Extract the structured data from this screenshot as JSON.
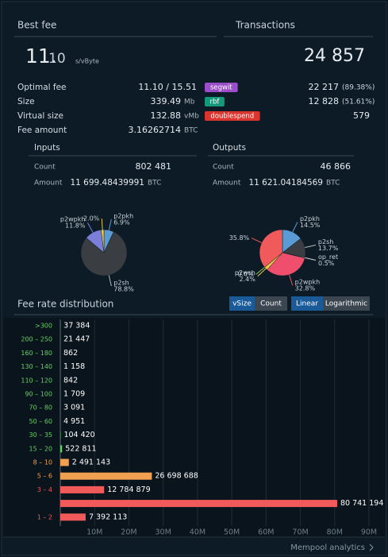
{
  "best_fee": {
    "header": "Best fee",
    "value_main": "11.",
    "value_fraction": "10",
    "unit": "s/vByte"
  },
  "transactions": {
    "header": "Transactions",
    "count": "24 857"
  },
  "stats": [
    {
      "label": "Optimal fee",
      "value": "11.10 / 15.51",
      "unit": null
    },
    {
      "label": "Size",
      "value": "339.49",
      "unit": "Mb"
    },
    {
      "label": "Virtual size",
      "value": "132.88",
      "unit": "vMb"
    },
    {
      "label": "Fee amount",
      "value": "3.16262714",
      "unit": "BTC"
    }
  ],
  "badges": [
    {
      "name": "segwit",
      "color": "#9b4dca",
      "count": "22 217",
      "share": "(89.38%)"
    },
    {
      "name": "rbf",
      "color": "#16987a",
      "count": "12 828",
      "share": "(51.61%)"
    },
    {
      "name": "doublespend",
      "color": "#d9352e",
      "count": "579",
      "share": null
    }
  ],
  "inputs": {
    "header": "Inputs",
    "count_label": "Count",
    "count": "802 481",
    "amount_label": "Amount",
    "amount": "11 699.48439991",
    "amount_unit": "BTC",
    "pie": {
      "type": "pie",
      "names": [
        "p2pkh",
        "p2sh",
        "p2wpkh",
        null
      ],
      "values": [
        6.9,
        78.8,
        11.8,
        2.0
      ],
      "value_labels": [
        "6.9%",
        "78.8%",
        "11.8%",
        "2.0%"
      ],
      "colors": [
        "#5b9bd5",
        "#3a3d42",
        "#7b7fd9",
        "#e8c94a"
      ]
    }
  },
  "outputs": {
    "header": "Outputs",
    "count_label": "Count",
    "count": "46 866",
    "amount_label": "Amount",
    "amount": "11 621.04184569",
    "amount_unit": "BTC",
    "pie": {
      "type": "pie",
      "names": [
        "p2pkh",
        "p2sh",
        "op_ret",
        "p2wpkh",
        "p2wsh",
        null,
        null
      ],
      "values": [
        14.5,
        13.7,
        0.5,
        32.8,
        2.4,
        0.0,
        35.8
      ],
      "value_labels": [
        "14.5%",
        "13.7%",
        "0.5%",
        "32.8%",
        "2.4%",
        "0.0%",
        "35.8%"
      ],
      "colors": [
        "#5b9bd5",
        "#3a3d42",
        "#cfd4d8",
        "#ef4f6c",
        "#e8c94a",
        "#8cc152",
        "#f05a5a"
      ]
    }
  },
  "controls": [
    "vSize",
    "Count",
    "Linear",
    "Logarithmic"
  ],
  "footer": {
    "link": "Mempool analytics"
  },
  "chart_data": {
    "type": "hbar",
    "title": "Fee rate distribution",
    "categories": [
      ">300",
      "200 – 250",
      "160 – 180",
      "130 – 140",
      "110 – 120",
      "90 – 100",
      "70 – 80",
      "50 – 60",
      "30 – 35",
      "15 – 20",
      "8 – 10",
      "5 – 6",
      "3 – 4",
      null,
      "1 – 2"
    ],
    "values": [
      37384,
      21447,
      862,
      1158,
      842,
      1709,
      3091,
      4951,
      104420,
      522811,
      2491143,
      26698688,
      12784879,
      80741194,
      7392113
    ],
    "value_labels": [
      "37 384",
      "21 447",
      "862",
      "1 158",
      "842",
      "1 709",
      "3 091",
      "4 951",
      "104 420",
      "522 811",
      "2 491 143",
      "26 698 688",
      "12 784 879",
      "80 741 194",
      "7 392 113"
    ],
    "colors": [
      "#5fd35f",
      "#5fd35f",
      "#5fd35f",
      "#5fd35f",
      "#5fd35f",
      "#5fd35f",
      "#5fd35f",
      "#5fd35f",
      "#5fd35f",
      "#5fd35f",
      "#f0a050",
      "#f0a050",
      "#f05a5a",
      "#f05a5a",
      "#f05a5a"
    ],
    "xlim": [
      0,
      90000000
    ],
    "xticks": [
      {
        "value": 10000000,
        "label": "10M"
      },
      {
        "value": 20000000,
        "label": "20M"
      },
      {
        "value": 30000000,
        "label": "30M"
      },
      {
        "value": 40000000,
        "label": "40M"
      },
      {
        "value": 50000000,
        "label": "50M"
      },
      {
        "value": 60000000,
        "label": "60M"
      },
      {
        "value": 70000000,
        "label": "70M"
      },
      {
        "value": 80000000,
        "label": "80M"
      },
      {
        "value": 90000000,
        "label": "90M"
      }
    ],
    "grid": true
  }
}
